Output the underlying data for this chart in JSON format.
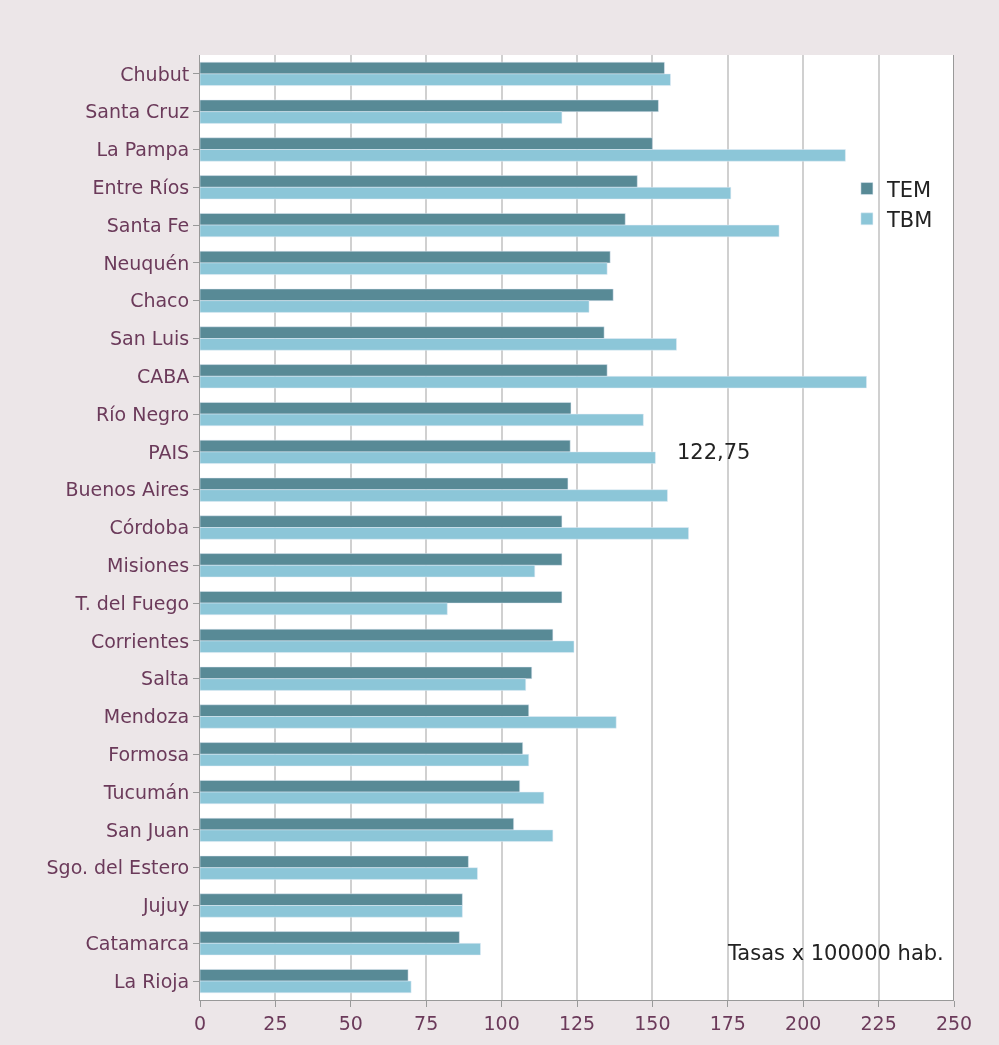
{
  "chart_data": {
    "type": "bar",
    "orientation": "horizontal",
    "categories": [
      "Chubut",
      "Santa Cruz",
      "La Pampa",
      "Entre Ríos",
      "Santa Fe",
      "Neuquén",
      "Chaco",
      "San Luis",
      "CABA",
      "Río Negro",
      "PAIS",
      "Buenos Aires",
      "Córdoba",
      "Misiones",
      "T. del Fuego",
      "Corrientes",
      "Salta",
      "Mendoza",
      "Formosa",
      "Tucumán",
      "San Juan",
      "Sgo. del Estero",
      "Jujuy",
      "Catamarca",
      "La Rioja"
    ],
    "series": [
      {
        "name": "TEM",
        "color": "#588a96",
        "values": [
          154,
          152,
          150,
          145,
          141,
          136,
          137,
          134,
          135,
          123,
          122.75,
          122,
          120,
          120,
          120,
          117,
          110,
          109,
          107,
          106,
          104,
          89,
          87,
          86,
          69
        ]
      },
      {
        "name": "TBM",
        "color": "#8cc6d8",
        "values": [
          156,
          120,
          214,
          176,
          192,
          135,
          129,
          158,
          221,
          147,
          151,
          155,
          162,
          111,
          82,
          124,
          108,
          138,
          109,
          114,
          117,
          92,
          87,
          93,
          70
        ]
      }
    ],
    "xlim": [
      0,
      250
    ],
    "xticks": [
      0,
      25,
      50,
      75,
      100,
      125,
      150,
      175,
      200,
      225,
      250
    ],
    "grid": "x",
    "legend": "top right",
    "annotations": [
      "122,75",
      "Tasas x 100000 hab."
    ]
  }
}
